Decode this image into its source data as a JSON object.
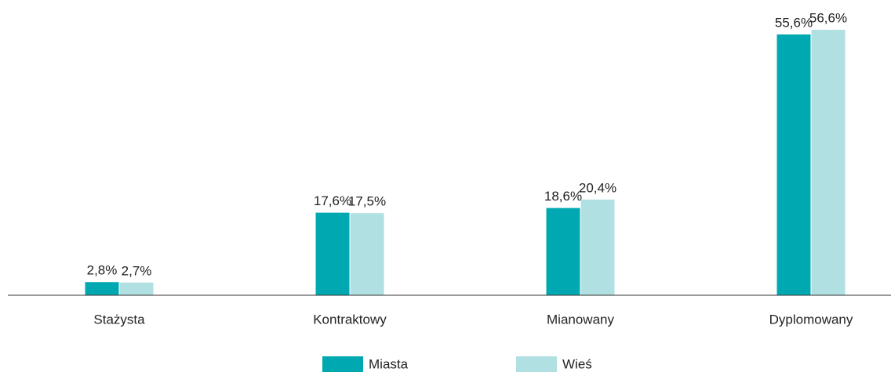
{
  "chart_data": {
    "type": "bar",
    "categories": [
      "Stażysta",
      "Kontraktowy",
      "Mianowany",
      "Dyplomowany"
    ],
    "series": [
      {
        "name": "Miasta",
        "color": "#00a9b1",
        "values": [
          2.8,
          17.6,
          18.6,
          55.6
        ],
        "value_labels": [
          "2,8%",
          "17,6%",
          "18,6%",
          "55,6%"
        ]
      },
      {
        "name": "Wieś",
        "color": "#b1e0e3",
        "values": [
          2.7,
          17.5,
          20.4,
          56.6
        ],
        "value_labels": [
          "2,7%",
          "17,5%",
          "20,4%",
          "56,6%"
        ]
      }
    ]
  }
}
